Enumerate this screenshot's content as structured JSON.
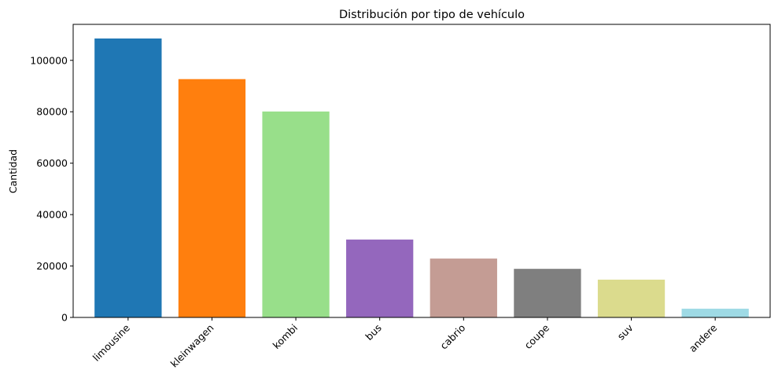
{
  "chart_data": {
    "type": "bar",
    "title": "Distribución por tipo de vehículo",
    "xlabel": "",
    "ylabel": "Cantidad",
    "categories": [
      "limousine",
      "kleinwagen",
      "kombi",
      "bus",
      "cabrio",
      "coupe",
      "suv",
      "andere"
    ],
    "values": [
      108500,
      92700,
      80100,
      30300,
      22900,
      18900,
      14700,
      3400
    ],
    "colors": [
      "#1f77b4",
      "#ff7f0e",
      "#98df8a",
      "#9467bd",
      "#c49c94",
      "#7f7f7f",
      "#dbdb8d",
      "#9edae5"
    ],
    "ylim": [
      0,
      114000
    ],
    "yticks": [
      0,
      20000,
      40000,
      60000,
      80000,
      100000
    ],
    "grid": false,
    "legend": "none"
  }
}
